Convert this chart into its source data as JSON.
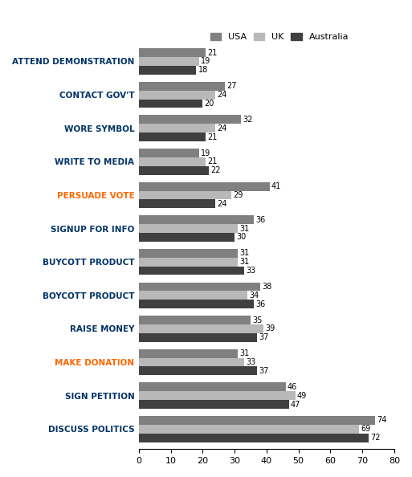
{
  "categories": [
    "ATTEND DEMONSTRATION",
    "CONTACT GOV'T",
    "WORE SYMBOL",
    "WRITE TO MEDIA",
    "PERSUADE VOTE",
    "SIGNUP FOR INFO",
    "BUYCOTT PRODUCT",
    "BOYCOTT PRODUCT",
    "RAISE MONEY",
    "MAKE DONATION",
    "SIGN PETITION",
    "DISCUSS POLITICS"
  ],
  "usa": [
    21,
    27,
    32,
    19,
    41,
    36,
    31,
    38,
    35,
    31,
    46,
    74
  ],
  "uk": [
    19,
    24,
    24,
    21,
    29,
    31,
    31,
    34,
    39,
    33,
    49,
    69
  ],
  "aus": [
    18,
    20,
    21,
    22,
    24,
    30,
    33,
    36,
    37,
    37,
    47,
    72
  ],
  "usa_color": "#808080",
  "uk_color": "#b8b8b8",
  "aus_color": "#404040",
  "label_color_normal": "#003366",
  "label_color_highlight": "#FF6600",
  "highlight_categories": [
    "PERSUADE VOTE",
    "MAKE DONATION"
  ],
  "xlim": [
    0,
    80
  ],
  "bar_height": 0.26,
  "legend_labels": [
    "USA",
    "UK",
    "Australia"
  ],
  "figsize": [
    5.13,
    5.94
  ],
  "dpi": 100
}
